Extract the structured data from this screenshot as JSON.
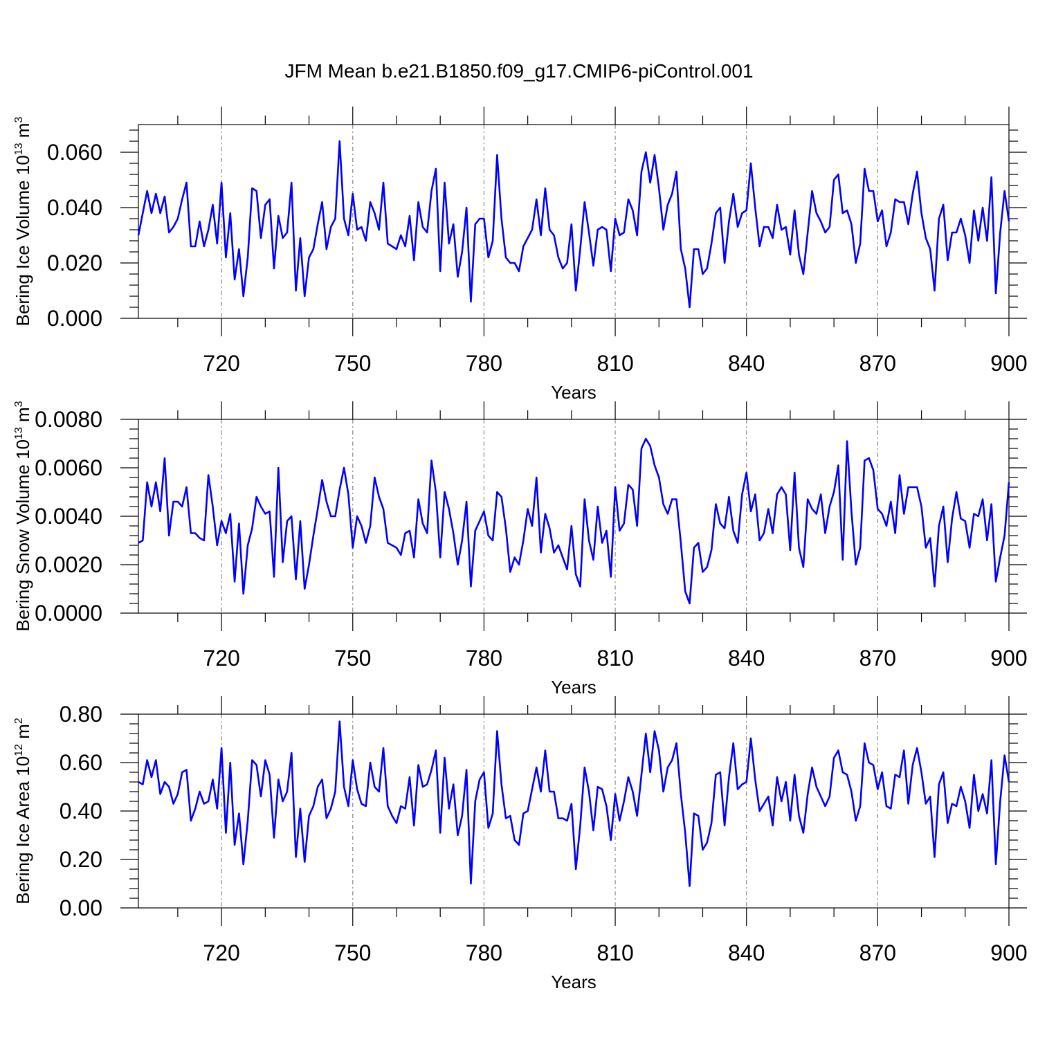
{
  "title": "JFM Mean b.e21.B1850.f09_g17.CMIP6-piControl.001",
  "chart_data": [
    {
      "type": "line",
      "ylabel": "Bering Ice Volume 10",
      "ylabel_sup": "13",
      "ylabel_unit": "m",
      "ylabel_unit_sup": "3",
      "xlabel": "Years",
      "x_start": 701,
      "xlim": [
        701,
        900
      ],
      "ylim": [
        0,
        0.07
      ],
      "y_ticks": [
        0,
        0.02,
        0.04,
        0.06
      ],
      "y_tick_labels": [
        "0.000",
        "0.020",
        "0.040",
        "0.060"
      ],
      "x_ticks": [
        720,
        750,
        780,
        810,
        840,
        870,
        900
      ],
      "x_tick_labels": [
        "720",
        "750",
        "780",
        "810",
        "840",
        "870",
        "900"
      ],
      "color": "#0000ff",
      "values": [
        0.03,
        0.038,
        0.046,
        0.038,
        0.045,
        0.038,
        0.044,
        0.031,
        0.033,
        0.036,
        0.043,
        0.049,
        0.026,
        0.026,
        0.035,
        0.026,
        0.032,
        0.041,
        0.027,
        0.049,
        0.022,
        0.038,
        0.014,
        0.025,
        0.008,
        0.022,
        0.047,
        0.046,
        0.029,
        0.041,
        0.043,
        0.018,
        0.037,
        0.029,
        0.031,
        0.049,
        0.01,
        0.029,
        0.008,
        0.022,
        0.025,
        0.034,
        0.042,
        0.025,
        0.033,
        0.036,
        0.064,
        0.036,
        0.03,
        0.045,
        0.032,
        0.033,
        0.028,
        0.042,
        0.038,
        0.032,
        0.049,
        0.027,
        0.026,
        0.025,
        0.03,
        0.026,
        0.037,
        0.021,
        0.042,
        0.033,
        0.031,
        0.046,
        0.054,
        0.017,
        0.049,
        0.027,
        0.034,
        0.015,
        0.024,
        0.04,
        0.006,
        0.034,
        0.036,
        0.036,
        0.022,
        0.028,
        0.059,
        0.036,
        0.022,
        0.02,
        0.02,
        0.017,
        0.026,
        0.029,
        0.032,
        0.043,
        0.03,
        0.047,
        0.032,
        0.03,
        0.022,
        0.018,
        0.02,
        0.034,
        0.01,
        0.025,
        0.042,
        0.031,
        0.019,
        0.032,
        0.033,
        0.032,
        0.017,
        0.036,
        0.03,
        0.031,
        0.043,
        0.039,
        0.03,
        0.053,
        0.06,
        0.049,
        0.059,
        0.047,
        0.032,
        0.041,
        0.045,
        0.053,
        0.025,
        0.018,
        0.004,
        0.025,
        0.025,
        0.016,
        0.018,
        0.027,
        0.038,
        0.04,
        0.02,
        0.035,
        0.045,
        0.033,
        0.038,
        0.039,
        0.056,
        0.04,
        0.026,
        0.033,
        0.033,
        0.029,
        0.041,
        0.032,
        0.033,
        0.023,
        0.039,
        0.023,
        0.016,
        0.031,
        0.046,
        0.038,
        0.035,
        0.031,
        0.033,
        0.05,
        0.052,
        0.038,
        0.039,
        0.034,
        0.02,
        0.027,
        0.054,
        0.046,
        0.046,
        0.035,
        0.039,
        0.026,
        0.031,
        0.043,
        0.042,
        0.042,
        0.034,
        0.045,
        0.053,
        0.038,
        0.029,
        0.025,
        0.01,
        0.036,
        0.041,
        0.021,
        0.031,
        0.031,
        0.036,
        0.03,
        0.02,
        0.039,
        0.028,
        0.04,
        0.028,
        0.051,
        0.009,
        0.031,
        0.046,
        0.035
      ]
    },
    {
      "type": "line",
      "ylabel": "Bering Snow Volume 10",
      "ylabel_sup": "13",
      "ylabel_unit": "m",
      "ylabel_unit_sup": "3",
      "xlabel": "Years",
      "x_start": 701,
      "xlim": [
        701,
        900
      ],
      "ylim": [
        0,
        0.008
      ],
      "y_ticks": [
        0,
        0.002,
        0.004,
        0.006,
        0.008
      ],
      "y_tick_labels": [
        "0.0000",
        "0.0020",
        "0.0040",
        "0.0060",
        "0.0080"
      ],
      "x_ticks": [
        720,
        750,
        780,
        810,
        840,
        870,
        900
      ],
      "x_tick_labels": [
        "720",
        "750",
        "780",
        "810",
        "840",
        "870",
        "900"
      ],
      "color": "#0000ff",
      "values": [
        0.0029,
        0.003,
        0.0054,
        0.0044,
        0.0054,
        0.0042,
        0.0064,
        0.0032,
        0.0046,
        0.0046,
        0.0044,
        0.0052,
        0.0033,
        0.0033,
        0.0031,
        0.003,
        0.0057,
        0.0044,
        0.0028,
        0.0038,
        0.0033,
        0.0041,
        0.0013,
        0.0037,
        0.0008,
        0.0028,
        0.0035,
        0.0048,
        0.0044,
        0.0041,
        0.0042,
        0.0015,
        0.006,
        0.0021,
        0.0038,
        0.004,
        0.0014,
        0.0038,
        0.001,
        0.002,
        0.0032,
        0.0043,
        0.0055,
        0.0046,
        0.004,
        0.004,
        0.0051,
        0.006,
        0.0049,
        0.0027,
        0.004,
        0.0036,
        0.0029,
        0.0036,
        0.0056,
        0.0048,
        0.0043,
        0.0029,
        0.0028,
        0.0027,
        0.0024,
        0.0033,
        0.0034,
        0.0023,
        0.0047,
        0.0037,
        0.0033,
        0.0063,
        0.005,
        0.0023,
        0.005,
        0.0043,
        0.0033,
        0.002,
        0.003,
        0.0046,
        0.0011,
        0.0034,
        0.0038,
        0.0042,
        0.0032,
        0.003,
        0.005,
        0.0048,
        0.0035,
        0.0017,
        0.0023,
        0.002,
        0.003,
        0.0043,
        0.0036,
        0.0056,
        0.0025,
        0.0041,
        0.0035,
        0.0025,
        0.0028,
        0.0023,
        0.0018,
        0.0036,
        0.0016,
        0.0011,
        0.0047,
        0.003,
        0.0022,
        0.0044,
        0.0029,
        0.0034,
        0.0015,
        0.0052,
        0.0034,
        0.0037,
        0.0053,
        0.0051,
        0.0036,
        0.0068,
        0.0072,
        0.0069,
        0.0061,
        0.0056,
        0.0045,
        0.0041,
        0.0047,
        0.0047,
        0.0029,
        0.0009,
        0.0004,
        0.0027,
        0.0029,
        0.0017,
        0.0019,
        0.0026,
        0.0045,
        0.0037,
        0.0035,
        0.0048,
        0.0034,
        0.0029,
        0.0049,
        0.0058,
        0.0042,
        0.0049,
        0.003,
        0.0033,
        0.0043,
        0.0033,
        0.0049,
        0.0052,
        0.0049,
        0.0026,
        0.0058,
        0.0027,
        0.0019,
        0.0047,
        0.0043,
        0.0041,
        0.0049,
        0.0033,
        0.0044,
        0.005,
        0.0061,
        0.0022,
        0.0071,
        0.0042,
        0.002,
        0.0027,
        0.0063,
        0.0064,
        0.0059,
        0.0043,
        0.0041,
        0.0036,
        0.0046,
        0.0033,
        0.0057,
        0.0041,
        0.0052,
        0.0052,
        0.0052,
        0.0044,
        0.0027,
        0.0031,
        0.0011,
        0.0036,
        0.0044,
        0.0021,
        0.0039,
        0.005,
        0.0039,
        0.0038,
        0.0027,
        0.0041,
        0.004,
        0.0047,
        0.003,
        0.0045,
        0.0013,
        0.0023,
        0.0032,
        0.0054
      ]
    },
    {
      "type": "line",
      "ylabel": "Bering Ice Area 10",
      "ylabel_sup": "12",
      "ylabel_unit": "m",
      "ylabel_unit_sup": "2",
      "xlabel": "Years",
      "x_start": 701,
      "xlim": [
        701,
        900
      ],
      "ylim": [
        0,
        0.8
      ],
      "y_ticks": [
        0,
        0.2,
        0.4,
        0.6,
        0.8
      ],
      "y_tick_labels": [
        "0.00",
        "0.20",
        "0.40",
        "0.60",
        "0.80"
      ],
      "x_ticks": [
        720,
        750,
        780,
        810,
        840,
        870,
        900
      ],
      "x_tick_labels": [
        "720",
        "750",
        "780",
        "810",
        "840",
        "870",
        "900"
      ],
      "color": "#0000ff",
      "values": [
        0.52,
        0.51,
        0.61,
        0.54,
        0.61,
        0.47,
        0.52,
        0.5,
        0.43,
        0.47,
        0.56,
        0.57,
        0.36,
        0.41,
        0.48,
        0.43,
        0.44,
        0.53,
        0.41,
        0.66,
        0.31,
        0.6,
        0.26,
        0.39,
        0.18,
        0.36,
        0.61,
        0.59,
        0.46,
        0.61,
        0.55,
        0.29,
        0.53,
        0.44,
        0.48,
        0.64,
        0.21,
        0.41,
        0.19,
        0.38,
        0.42,
        0.5,
        0.53,
        0.37,
        0.41,
        0.48,
        0.77,
        0.5,
        0.42,
        0.61,
        0.49,
        0.43,
        0.42,
        0.6,
        0.5,
        0.48,
        0.66,
        0.42,
        0.38,
        0.35,
        0.42,
        0.41,
        0.54,
        0.34,
        0.59,
        0.5,
        0.51,
        0.57,
        0.65,
        0.31,
        0.62,
        0.41,
        0.51,
        0.3,
        0.38,
        0.57,
        0.1,
        0.44,
        0.53,
        0.56,
        0.33,
        0.39,
        0.73,
        0.51,
        0.37,
        0.38,
        0.28,
        0.26,
        0.39,
        0.4,
        0.49,
        0.58,
        0.48,
        0.65,
        0.48,
        0.48,
        0.37,
        0.37,
        0.36,
        0.43,
        0.16,
        0.34,
        0.58,
        0.48,
        0.32,
        0.5,
        0.49,
        0.42,
        0.28,
        0.47,
        0.36,
        0.44,
        0.54,
        0.48,
        0.38,
        0.55,
        0.72,
        0.56,
        0.73,
        0.65,
        0.48,
        0.58,
        0.61,
        0.68,
        0.47,
        0.31,
        0.09,
        0.39,
        0.38,
        0.24,
        0.27,
        0.35,
        0.55,
        0.56,
        0.34,
        0.54,
        0.68,
        0.49,
        0.51,
        0.52,
        0.7,
        0.53,
        0.4,
        0.43,
        0.46,
        0.34,
        0.54,
        0.44,
        0.52,
        0.36,
        0.55,
        0.38,
        0.31,
        0.47,
        0.58,
        0.5,
        0.46,
        0.42,
        0.46,
        0.62,
        0.65,
        0.56,
        0.55,
        0.48,
        0.36,
        0.42,
        0.68,
        0.6,
        0.59,
        0.49,
        0.56,
        0.42,
        0.41,
        0.55,
        0.54,
        0.65,
        0.43,
        0.59,
        0.66,
        0.56,
        0.43,
        0.46,
        0.21,
        0.51,
        0.56,
        0.35,
        0.43,
        0.42,
        0.5,
        0.44,
        0.33,
        0.55,
        0.4,
        0.47,
        0.39,
        0.61,
        0.18,
        0.44,
        0.63,
        0.52
      ]
    }
  ]
}
